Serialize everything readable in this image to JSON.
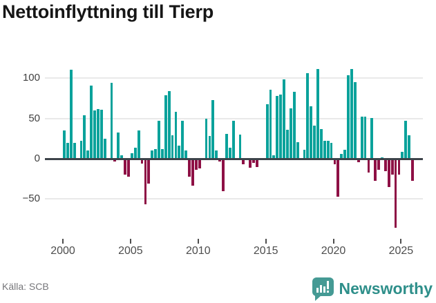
{
  "title": "Nettoinflyttning till Tierp",
  "source": {
    "text": "Källa: SCB"
  },
  "brand": {
    "name": "Newsworthy",
    "icon": "newsworthy-speech-bubble-bars",
    "icon_color": "#459a94",
    "text_color": "#2e8f8a"
  },
  "colors": {
    "positive_bar": "#0aa29b",
    "negative_bar": "#8e1045",
    "gridline": "#e9e9e9",
    "zero_line": "#3d434a",
    "title_text": "#161616",
    "axis_text": "#4d4d4d",
    "source_text": "#76767a"
  },
  "chart_data": {
    "type": "bar",
    "title": "Nettoinflyttning till Tierp",
    "xlabel": "",
    "ylabel": "",
    "x_unit": "quarter",
    "x_tick_years": [
      2000,
      2005,
      2010,
      2015,
      2020,
      2025
    ],
    "y_ticks": [
      100,
      50,
      0,
      -50
    ],
    "ylim": [
      -95,
      120
    ],
    "grid": "horizontal",
    "legend": "none",
    "series": [
      {
        "name": "Nettoinflyttning per kvartal",
        "values_by_year": [
          {
            "year": 2000,
            "values": [
              35,
              20,
              111,
              20
            ]
          },
          {
            "year": 2001,
            "values": [
              0,
              22,
              54,
              10
            ]
          },
          {
            "year": 2002,
            "values": [
              91,
              60,
              62,
              61
            ]
          },
          {
            "year": 2003,
            "values": [
              25,
              0,
              94,
              -3
            ]
          },
          {
            "year": 2004,
            "values": [
              33,
              4,
              -20,
              -22
            ]
          },
          {
            "year": 2005,
            "values": [
              7,
              14,
              35,
              -6
            ]
          },
          {
            "year": 2006,
            "values": [
              -57,
              -31,
              10,
              12
            ]
          },
          {
            "year": 2007,
            "values": [
              47,
              12,
              79,
              84
            ]
          },
          {
            "year": 2008,
            "values": [
              29,
              58,
              16,
              47
            ]
          },
          {
            "year": 2009,
            "values": [
              10,
              -22,
              -33,
              -14
            ]
          },
          {
            "year": 2010,
            "values": [
              -12,
              0,
              50,
              28
            ]
          },
          {
            "year": 2011,
            "values": [
              73,
              10,
              -3,
              -40
            ]
          },
          {
            "year": 2012,
            "values": [
              31,
              14,
              47,
              0
            ]
          },
          {
            "year": 2013,
            "values": [
              30,
              -7,
              0,
              -11
            ]
          },
          {
            "year": 2014,
            "values": [
              -5,
              -10,
              0,
              0
            ]
          },
          {
            "year": 2015,
            "values": [
              68,
              86,
              4,
              78
            ]
          },
          {
            "year": 2016,
            "values": [
              80,
              99,
              36,
              63
            ]
          },
          {
            "year": 2017,
            "values": [
              83,
              21,
              0,
              11
            ]
          },
          {
            "year": 2018,
            "values": [
              106,
              65,
              41,
              112
            ]
          },
          {
            "year": 2019,
            "values": [
              37,
              22,
              22,
              20
            ]
          },
          {
            "year": 2020,
            "values": [
              -7,
              -47,
              6,
              11
            ]
          },
          {
            "year": 2021,
            "values": [
              104,
              112,
              95,
              -4
            ]
          },
          {
            "year": 2022,
            "values": [
              52,
              52,
              -17,
              51
            ]
          },
          {
            "year": 2023,
            "values": [
              -27,
              -14,
              2,
              -15
            ]
          },
          {
            "year": 2024,
            "values": [
              -35,
              -20,
              -86,
              -20
            ]
          },
          {
            "year": 2025,
            "values": [
              9,
              47,
              29,
              -27
            ]
          }
        ]
      }
    ]
  }
}
